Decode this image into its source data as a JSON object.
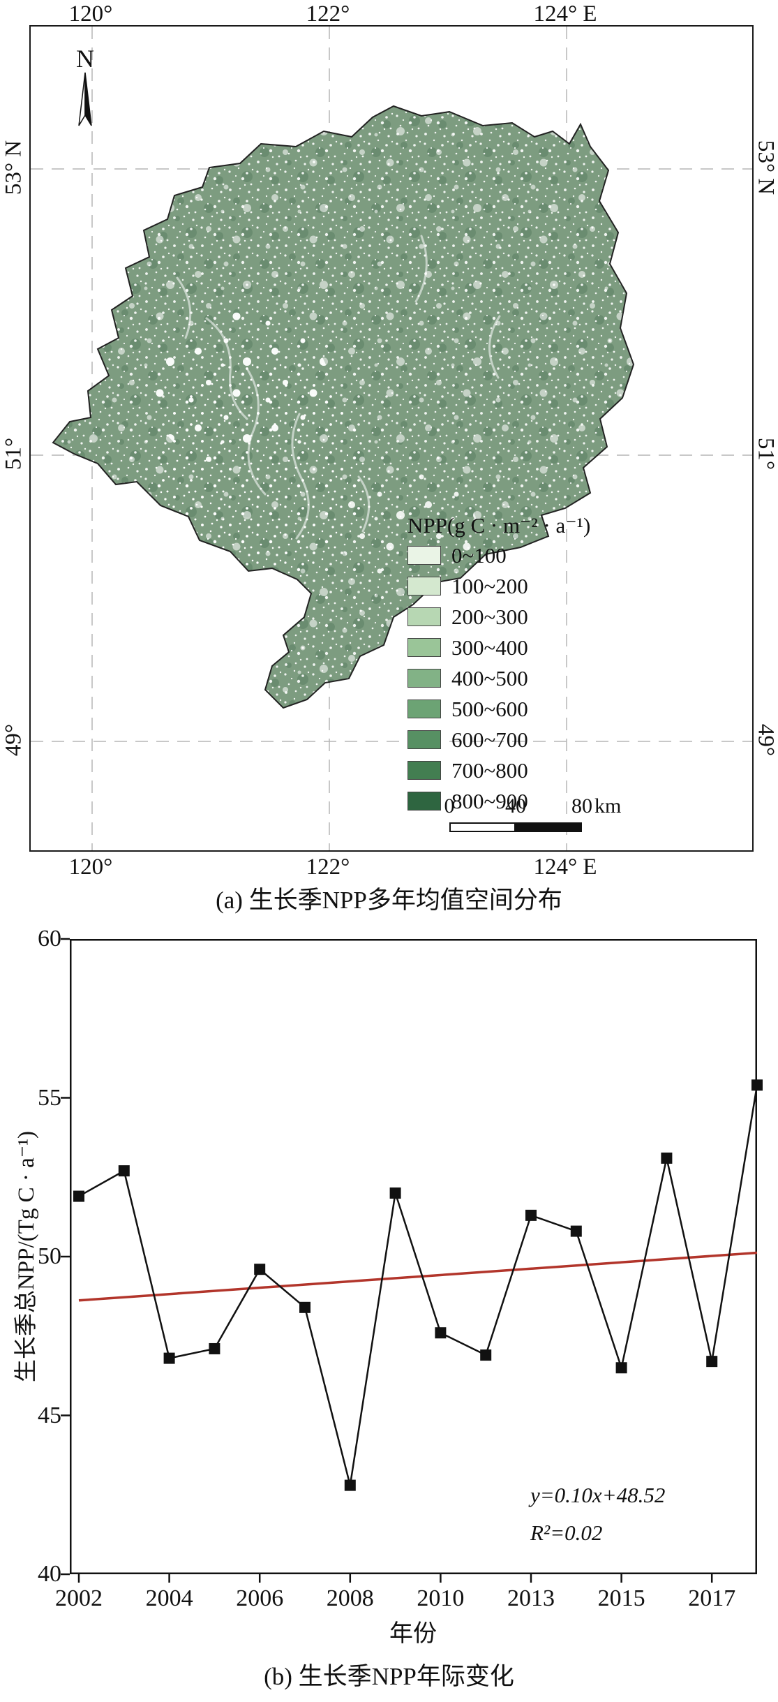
{
  "panel_a": {
    "caption": "(a) 生长季NPP多年均值空间分布",
    "north_label": "N",
    "lon_labels_top": [
      "120°",
      "122°",
      "124°  E"
    ],
    "lon_labels_bottom": [
      "120°",
      "122°",
      "124°  E"
    ],
    "lat_labels_left": [
      "53°  N",
      "51°",
      "49°"
    ],
    "lat_labels_right": [
      "53°  N",
      "51°",
      "49°"
    ],
    "legend": {
      "title": "NPP(g C · m⁻² · a⁻¹)",
      "items": [
        {
          "label": "0~100",
          "color": "#eaf4e6"
        },
        {
          "label": "100~200",
          "color": "#d4e8cf"
        },
        {
          "label": "200~300",
          "color": "#b7d7b3"
        },
        {
          "label": "300~400",
          "color": "#9ac598"
        },
        {
          "label": "400~500",
          "color": "#82b286"
        },
        {
          "label": "500~600",
          "color": "#6ca374"
        },
        {
          "label": "600~700",
          "color": "#579063"
        },
        {
          "label": "700~800",
          "color": "#437e51"
        },
        {
          "label": "800~900",
          "color": "#2e6540"
        }
      ]
    },
    "scalebar": {
      "labels": [
        "0",
        "40",
        "80"
      ],
      "unit": "km"
    },
    "map_base_color": "#7d9c80"
  },
  "panel_b": {
    "caption": "(b) 生长季NPP年际变化"
  },
  "chart_data": {
    "type": "line",
    "xlabel": "年份",
    "ylabel": "生长季总NPP/(Tg C · a⁻¹)",
    "years": [
      2002,
      2003,
      2004,
      2005,
      2006,
      2007,
      2008,
      2009,
      2010,
      2011,
      2012,
      2013,
      2014,
      2015,
      2016,
      2017
    ],
    "values": [
      51.9,
      52.7,
      46.8,
      47.1,
      49.6,
      48.4,
      42.8,
      52.0,
      47.6,
      46.9,
      51.3,
      50.8,
      46.5,
      53.1,
      46.7,
      55.4
    ],
    "ylim": [
      40,
      60
    ],
    "yticks": [
      40,
      45,
      50,
      55,
      60
    ],
    "xtick_labels": [
      "2002",
      "2004",
      "2006",
      "2008",
      "2010",
      "2013",
      "2015",
      "2017"
    ],
    "line_color": "#111111",
    "marker": "square",
    "legend_position": "none",
    "grid": false,
    "trend": {
      "slope": 0.1,
      "intercept": 48.52,
      "color": "#b2352b",
      "label": "y=0.10x+48.52",
      "r2": "R²=0.02"
    }
  }
}
